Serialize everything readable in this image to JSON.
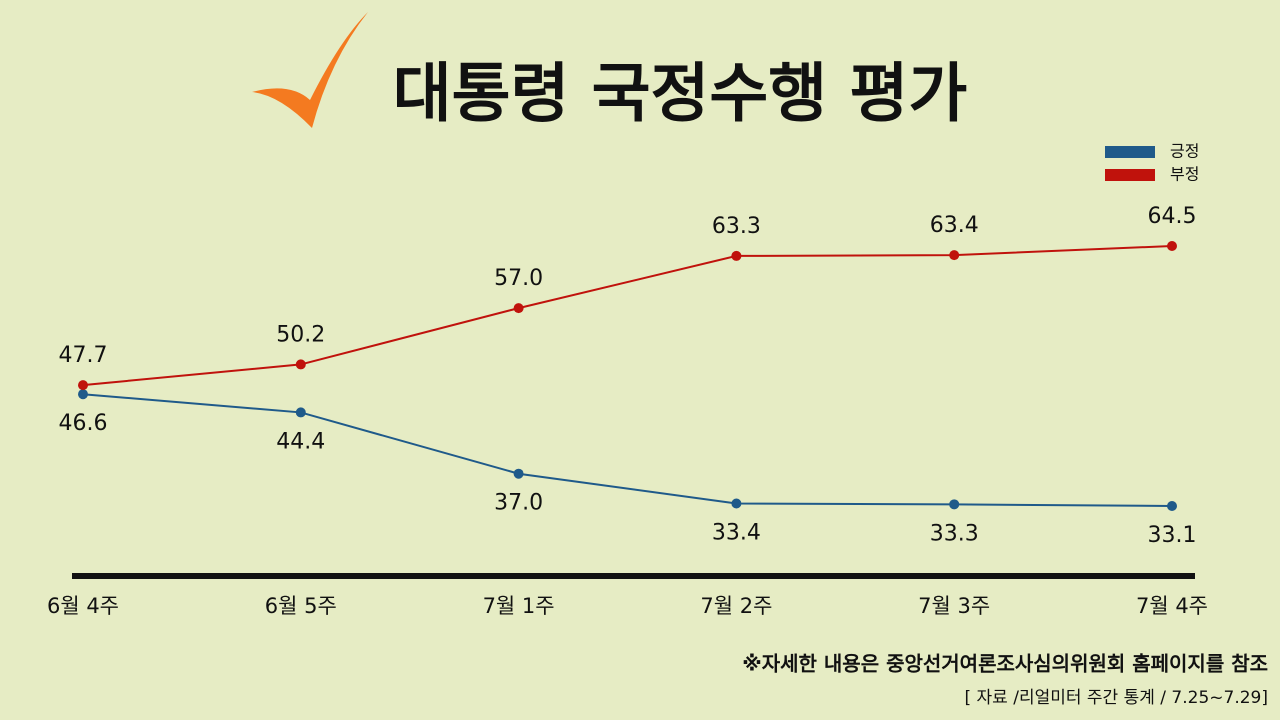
{
  "chart_data": {
    "type": "line",
    "title": "대통령 국정수행 평가",
    "categories": [
      "6월 4주",
      "6월 5주",
      "7월 1주",
      "7월 2주",
      "7월 3주",
      "7월 4주"
    ],
    "series": [
      {
        "name": "긍정",
        "color": "#1f5a8a",
        "values": [
          46.6,
          44.4,
          37.0,
          33.4,
          33.3,
          33.1
        ],
        "value_labels": [
          "46.6",
          "44.4",
          "37.0",
          "33.4",
          "33.3",
          "33.1"
        ]
      },
      {
        "name": "부정",
        "color": "#c0120c",
        "values": [
          47.7,
          50.2,
          57.0,
          63.3,
          63.4,
          64.5
        ],
        "value_labels": [
          "47.7",
          "50.2",
          "57.0",
          "63.3",
          "63.4",
          "64.5"
        ]
      }
    ],
    "legend": "top-right",
    "annotations": [
      "※자세한 내용은 중앙선거여론조사심의위원회 홈페이지를 참조",
      "[ 자료 /리얼미터 주간 통계 / 7.25~7.29]"
    ]
  }
}
